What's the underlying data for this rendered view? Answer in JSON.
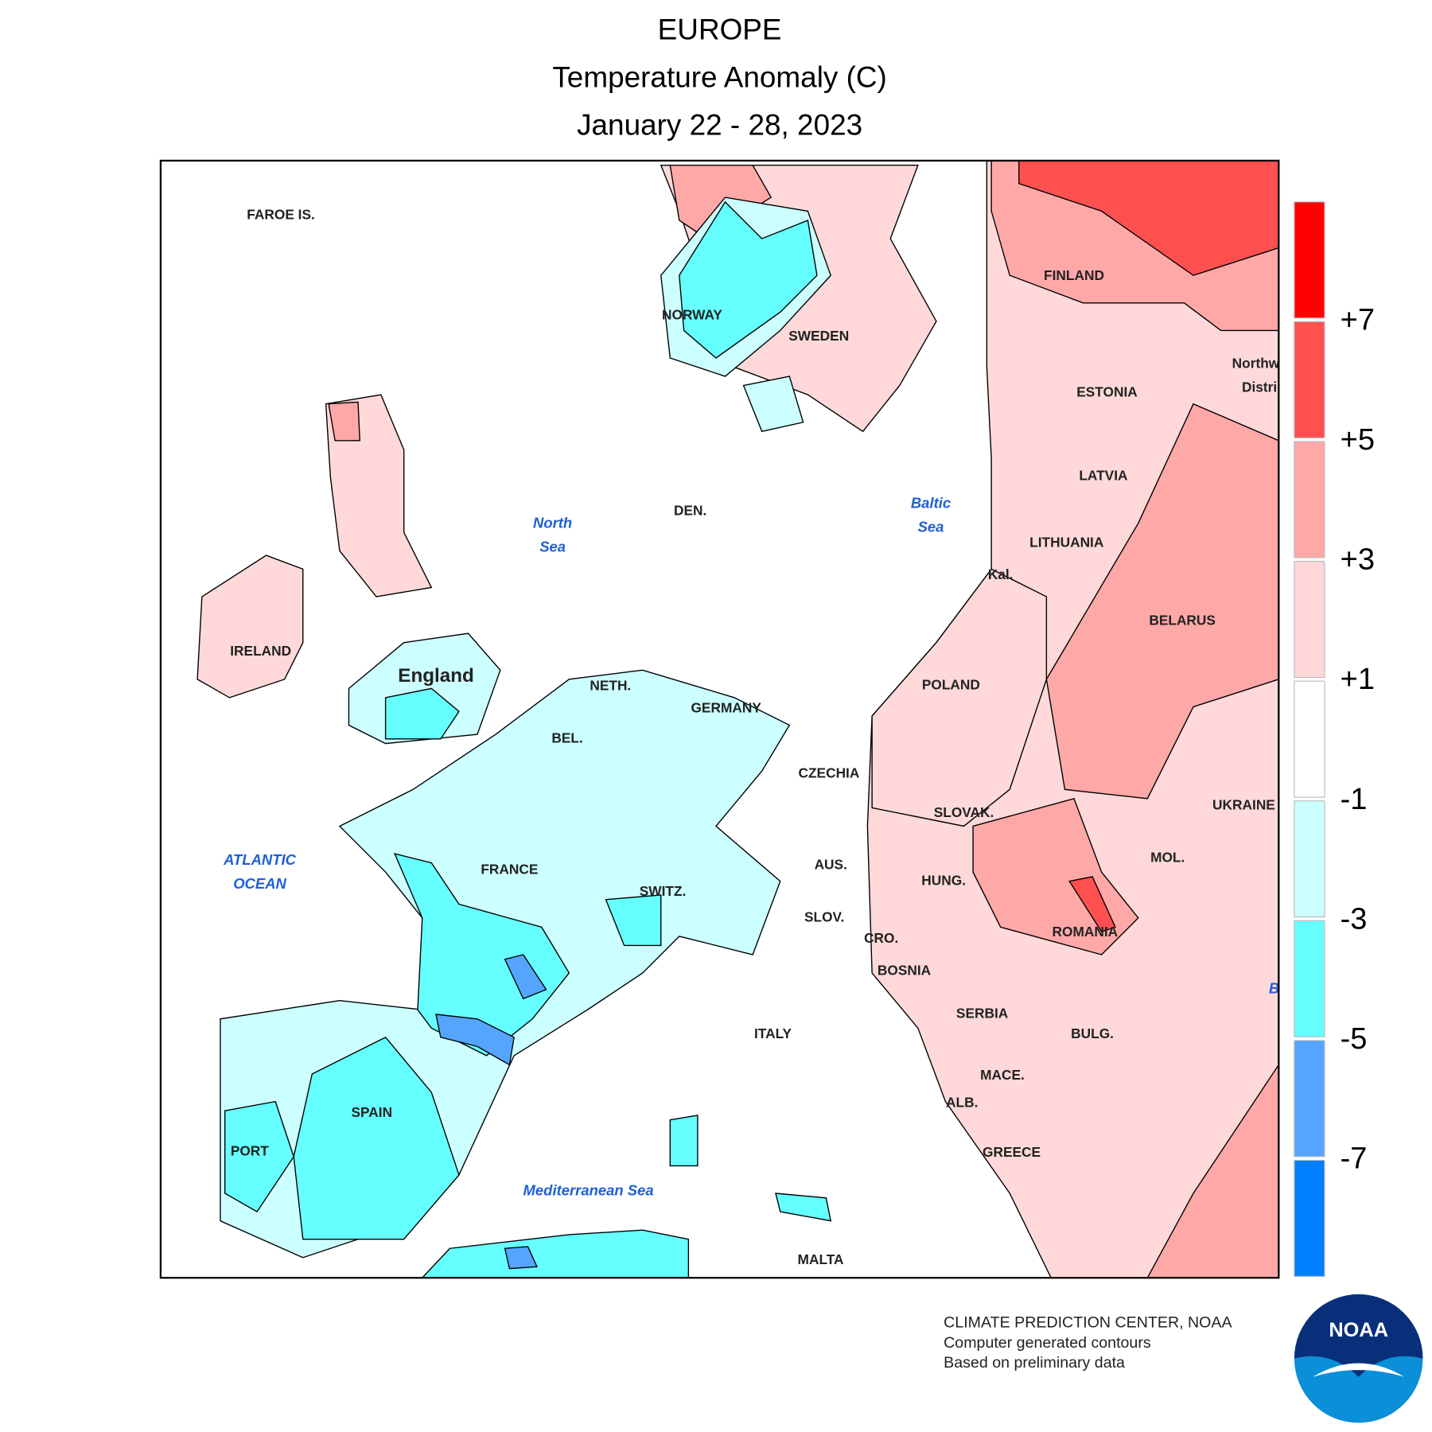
{
  "header": {
    "title": "EUROPE",
    "subtitle": "Temperature Anomaly (C)",
    "dates": "January 22 - 28, 2023"
  },
  "map": {
    "labels": [
      "FAROE IS.",
      "NORWAY",
      "SWEDEN",
      "FINLAND",
      "ESTONIA",
      "LATVIA",
      "LITHUANIA",
      "Kal.",
      "BELARUS",
      "POLAND",
      "IRELAND",
      "England",
      "NETH.",
      "GERMANY",
      "BEL.",
      "DEN.",
      "CZECHIA",
      "SLOVAK.",
      "UKRAINE",
      "MOL.",
      "FRANCE",
      "SWITZ.",
      "AUS.",
      "HUNG.",
      "SLOV.",
      "CRO.",
      "ROMANIA",
      "BOSNIA",
      "SERBIA",
      "BULG.",
      "ITALY",
      "MACE.",
      "ALB.",
      "SPAIN",
      "PORT",
      "GREECE",
      "MALTA",
      "Northw",
      "Distri"
    ],
    "seas": [
      [
        "North",
        "Sea"
      ],
      [
        "Baltic",
        "Sea"
      ],
      [
        "ATLANTIC",
        "OCEAN"
      ],
      [
        "Mediterranean Sea"
      ],
      [
        "B"
      ]
    ]
  },
  "legend": {
    "colors": [
      "#ff0000",
      "#ff5050",
      "#ffa8a8",
      "#ffd9d9",
      "#ffffff",
      "#ccffff",
      "#66ffff",
      "#55a5ff",
      "#0080ff"
    ],
    "ticks": [
      {
        "value": 7,
        "label": "+7"
      },
      {
        "value": 5,
        "label": "+5"
      },
      {
        "value": 3,
        "label": "+3"
      },
      {
        "value": 1,
        "label": "+1"
      },
      -1,
      -3,
      -5,
      -7
    ]
  },
  "footer": {
    "lines": [
      "CLIMATE PREDICTION CENTER, NOAA",
      "Computer generated contours",
      "Based on preliminary data"
    ],
    "logo": "NOAA"
  }
}
